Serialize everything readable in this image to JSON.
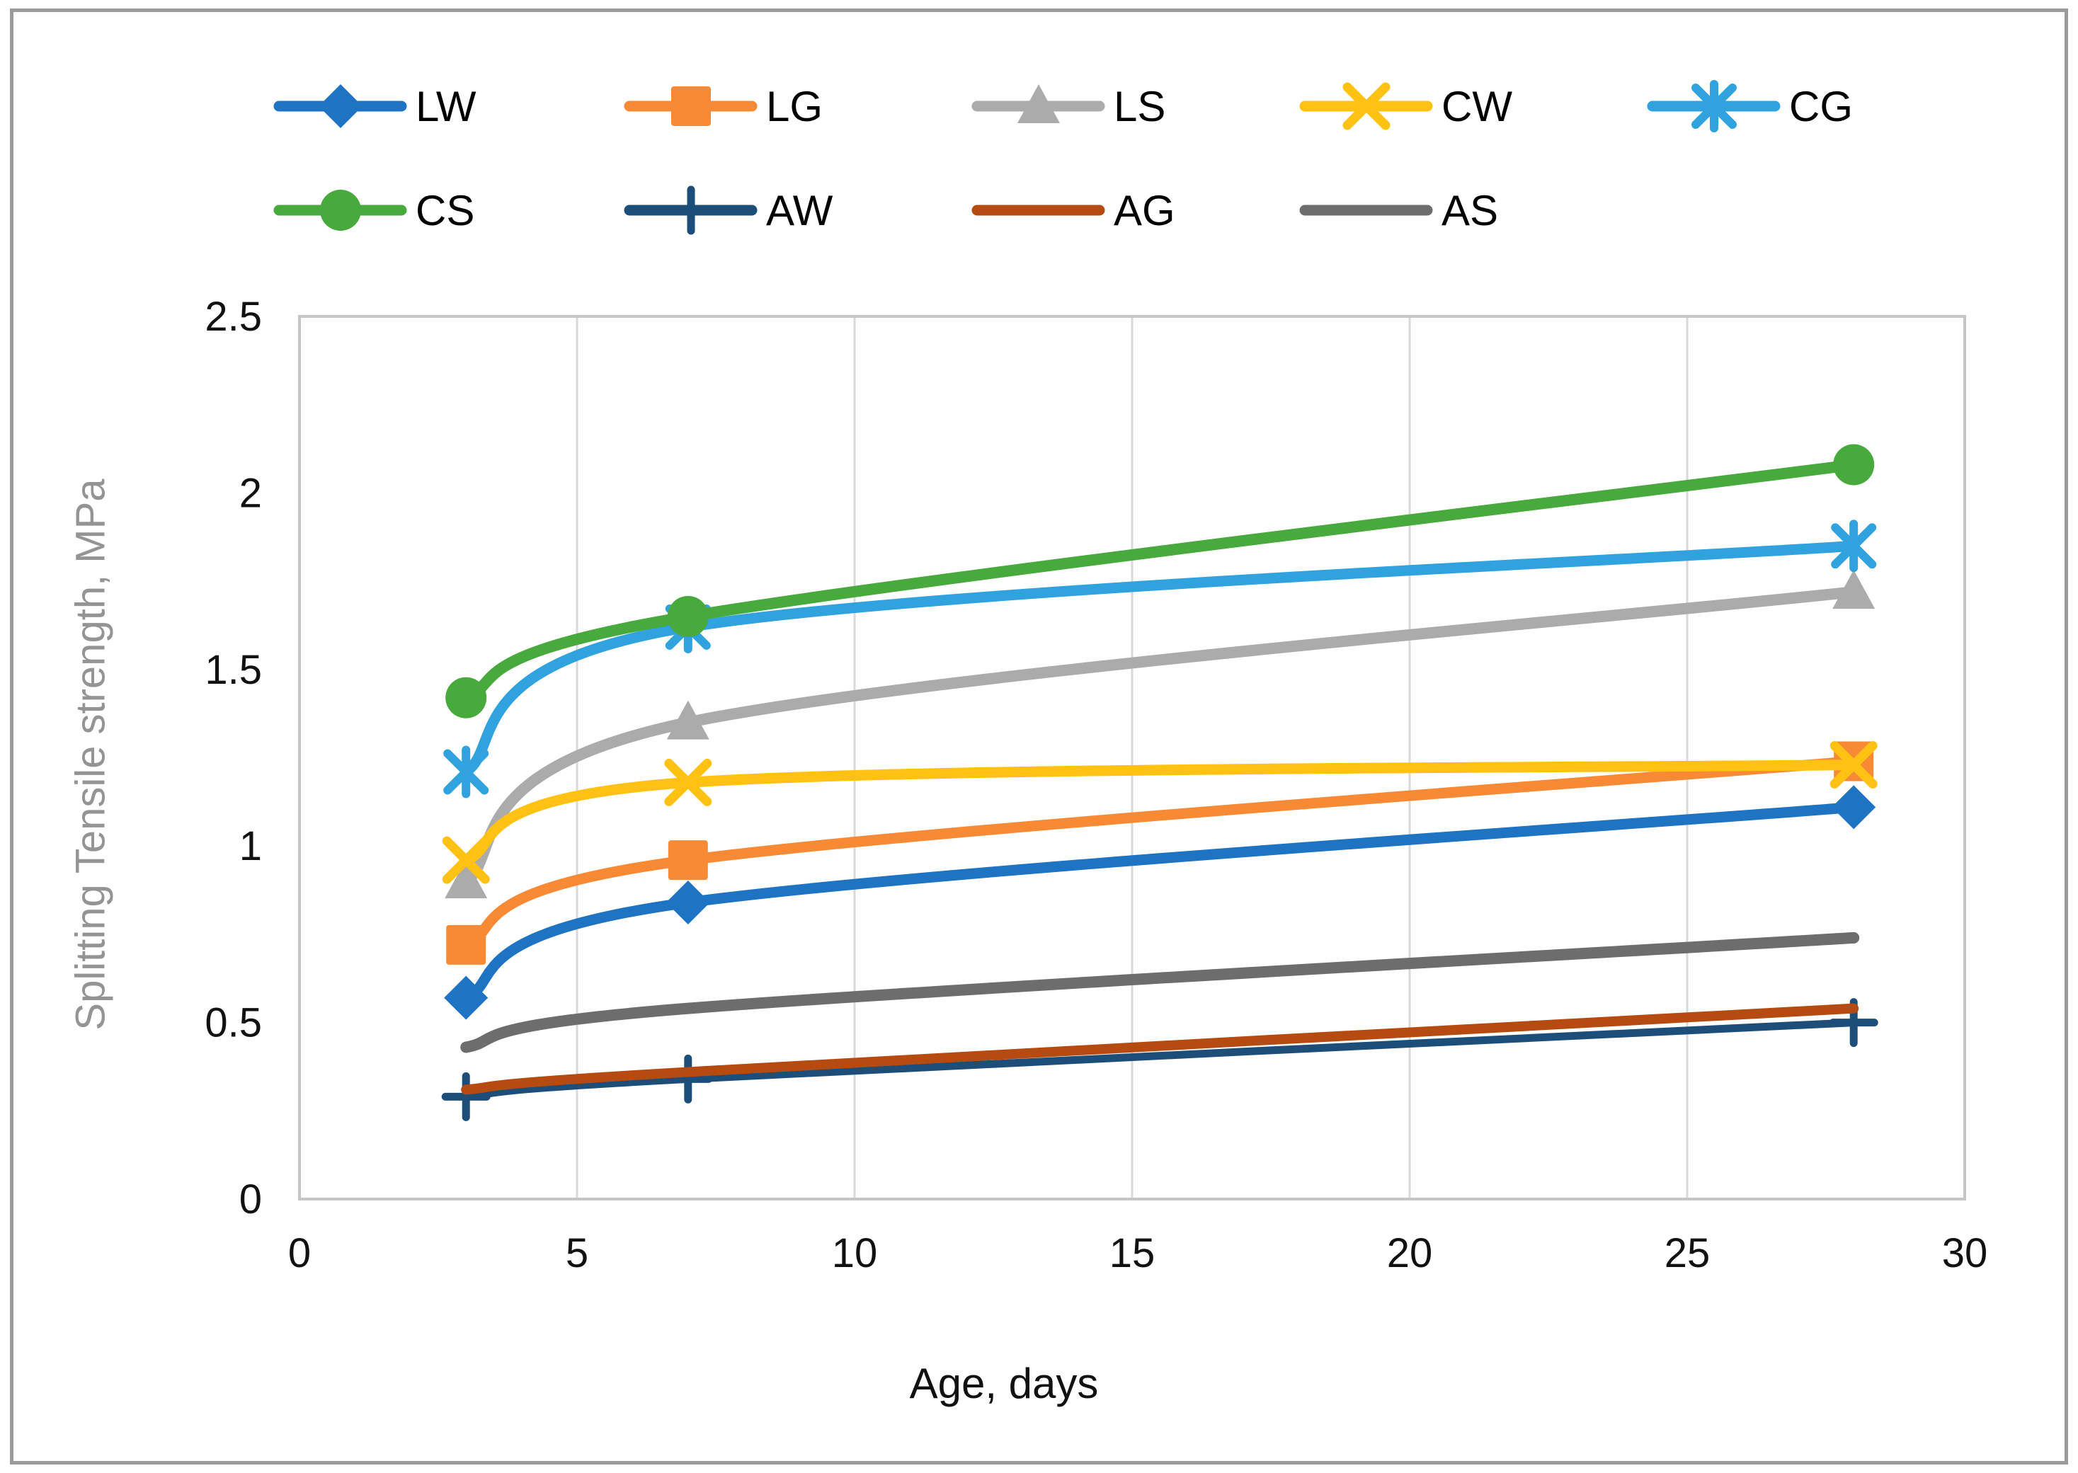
{
  "chart_data": {
    "type": "line",
    "title": "",
    "xlabel": "Age, days",
    "ylabel": "Splitting Tensile strength, MPa",
    "x": [
      3,
      7,
      28
    ],
    "xlim": [
      0,
      30
    ],
    "ylim": [
      0,
      2.5
    ],
    "xticks": [
      0,
      5,
      10,
      15,
      20,
      25,
      30
    ],
    "yticks": [
      0,
      0.5,
      1,
      1.5,
      2,
      2.5
    ],
    "grid": "vertical-only",
    "legend_position": "top",
    "line_smoothing": true,
    "series": [
      {
        "name": "LW",
        "color": "#1E73C2",
        "marker": "diamond",
        "width": 15,
        "values": [
          0.57,
          0.84,
          1.11
        ]
      },
      {
        "name": "LG",
        "color": "#F98A35",
        "marker": "square",
        "width": 15,
        "values": [
          0.72,
          0.96,
          1.24
        ]
      },
      {
        "name": "LS",
        "color": "#ABABAB",
        "marker": "triangle",
        "width": 16,
        "values": [
          0.9,
          1.35,
          1.72
        ]
      },
      {
        "name": "CW",
        "color": "#FFC213",
        "marker": "x",
        "width": 15,
        "values": [
          0.96,
          1.18,
          1.23
        ]
      },
      {
        "name": "CG",
        "color": "#30A2DD",
        "marker": "asterisk",
        "width": 15,
        "values": [
          1.21,
          1.62,
          1.85
        ]
      },
      {
        "name": "CS",
        "color": "#48A93C",
        "marker": "circle",
        "width": 16,
        "values": [
          1.42,
          1.65,
          2.08
        ]
      },
      {
        "name": "AW",
        "color": "#1C4E79",
        "marker": "plus",
        "width": 11,
        "values": [
          0.29,
          0.34,
          0.5
        ]
      },
      {
        "name": "AG",
        "color": "#B54B10",
        "marker": "none",
        "width": 14,
        "values": [
          0.31,
          0.36,
          0.54
        ]
      },
      {
        "name": "AS",
        "color": "#6D6D6D",
        "marker": "none",
        "width": 16,
        "values": [
          0.43,
          0.54,
          0.74
        ]
      }
    ],
    "legend_rows": [
      [
        "LW",
        "LG",
        "LS",
        "CW",
        "CG"
      ],
      [
        "CS",
        "AW",
        "AG",
        "AS"
      ]
    ]
  },
  "styles": {
    "grid_color": "#D9D9D9",
    "plot_border_color": "#C6C6C6",
    "tick_label_color": "#111111",
    "x_title_color": "#111111",
    "y_title_color": "#949494",
    "legend_text_color": "#000000",
    "outer_frame_color": "#9B9B9B"
  }
}
